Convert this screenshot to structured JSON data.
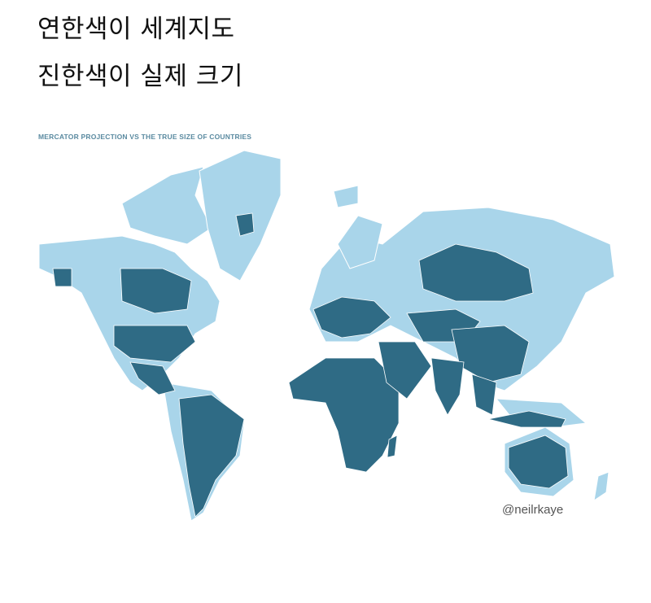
{
  "caption": {
    "line1": "연한색이 세계지도",
    "line2": "진한색이 실제 크기"
  },
  "map": {
    "title": "MERCATOR PROJECTION VS THE TRUE SIZE OF COUNTRIES",
    "credit": "@neilrkaye",
    "colors": {
      "mercator": "#a9d5ea",
      "true_size": "#2f6b85",
      "border": "#ffffff"
    }
  }
}
